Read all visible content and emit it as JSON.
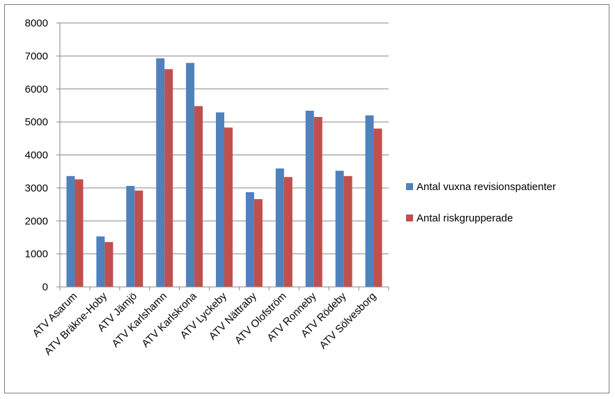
{
  "chart_data": {
    "type": "bar",
    "categories": [
      "ATV Asarum",
      "ATV Bräkne-Hoby",
      "ATV Jämjö",
      "ATV Karlshamn",
      "ATV Karlskrona",
      "ATV Lyckeby",
      "ATV Nättraby",
      "ATV Olofström",
      "ATV Ronneby",
      "ATV Rödeby",
      "ATV Sölvesborg"
    ],
    "series": [
      {
        "name": "Antal vuxna revisionspatienter",
        "color": "#4f81bd",
        "values": [
          3360,
          1530,
          3060,
          6930,
          6790,
          5290,
          2870,
          3590,
          5340,
          3520,
          5200
        ]
      },
      {
        "name": "Antal riskgrupperade",
        "color": "#c0504d",
        "values": [
          3260,
          1360,
          2920,
          6600,
          5480,
          4830,
          2660,
          3330,
          5150,
          3360,
          4800
        ]
      }
    ],
    "title": "",
    "xlabel": "",
    "ylabel": "",
    "ylim": [
      0,
      8000
    ],
    "yticks": [
      0,
      1000,
      2000,
      3000,
      4000,
      5000,
      6000,
      7000,
      8000
    ],
    "grid": true,
    "legend_position": "right"
  }
}
